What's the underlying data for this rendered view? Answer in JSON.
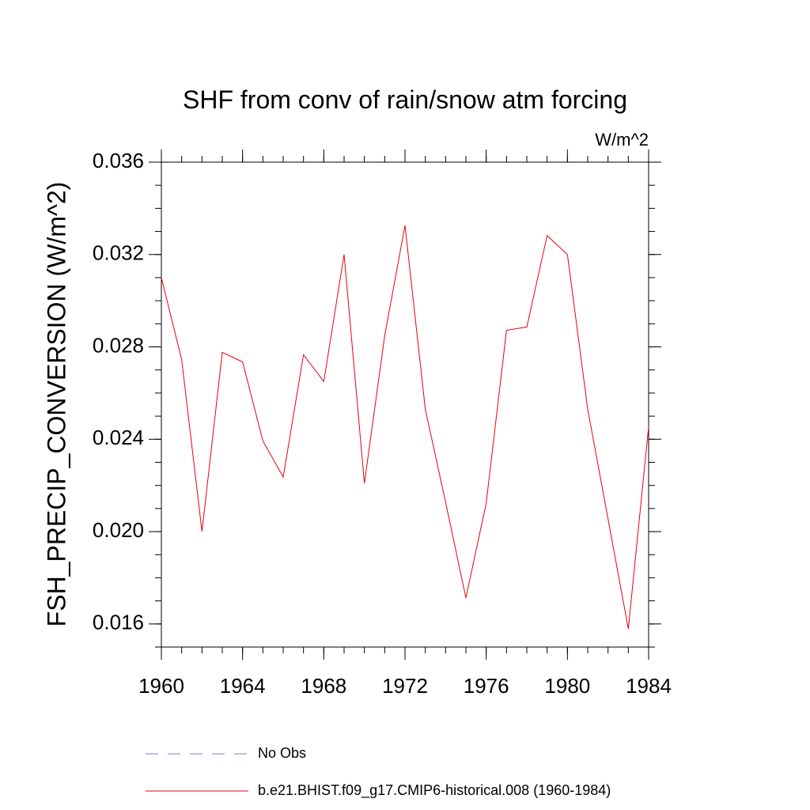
{
  "chart_data": {
    "type": "line",
    "title": "SHF from conv of rain/snow atm forcing",
    "units": "W/m^2",
    "y_label": "FSH_PRECIP_CONVERSION  (W/m^2)",
    "x": [
      1960,
      1961,
      1962,
      1963,
      1964,
      1965,
      1966,
      1967,
      1968,
      1969,
      1970,
      1971,
      1972,
      1973,
      1974,
      1975,
      1976,
      1977,
      1978,
      1979,
      1980,
      1981,
      1982,
      1983,
      1984
    ],
    "series": [
      {
        "name": "No Obs",
        "color": "#7b7bd0",
        "dashed": true,
        "values": [
          null,
          null,
          null,
          null,
          null,
          null,
          null,
          null,
          null,
          null,
          null,
          null,
          null,
          null,
          null,
          null,
          null,
          null,
          null,
          null,
          null,
          null,
          null,
          null,
          null
        ]
      },
      {
        "name": "b.e21.BHIST.f09_g17.CMIP6-historical.008 (1960-1984)",
        "color": "#e8000b",
        "dashed": false,
        "values": [
          0.031,
          0.02745,
          0.02,
          0.02776,
          0.02735,
          0.02393,
          0.02236,
          0.02766,
          0.0265,
          0.032,
          0.02209,
          0.02848,
          0.03326,
          0.0253,
          0.02127,
          0.01713,
          0.02123,
          0.02872,
          0.02886,
          0.03282,
          0.032,
          0.0253,
          0.02055,
          0.01579,
          0.02455
        ]
      }
    ],
    "xlim": [
      1960,
      1984
    ],
    "xticks": [
      1960,
      1964,
      1968,
      1972,
      1976,
      1980,
      1984
    ],
    "ylim": [
      0.015,
      0.036
    ],
    "yticks": [
      0.016,
      {
        "value": 0.02,
        "label": "0.020"
      },
      0.024,
      0.028,
      0.032,
      0.036
    ]
  }
}
